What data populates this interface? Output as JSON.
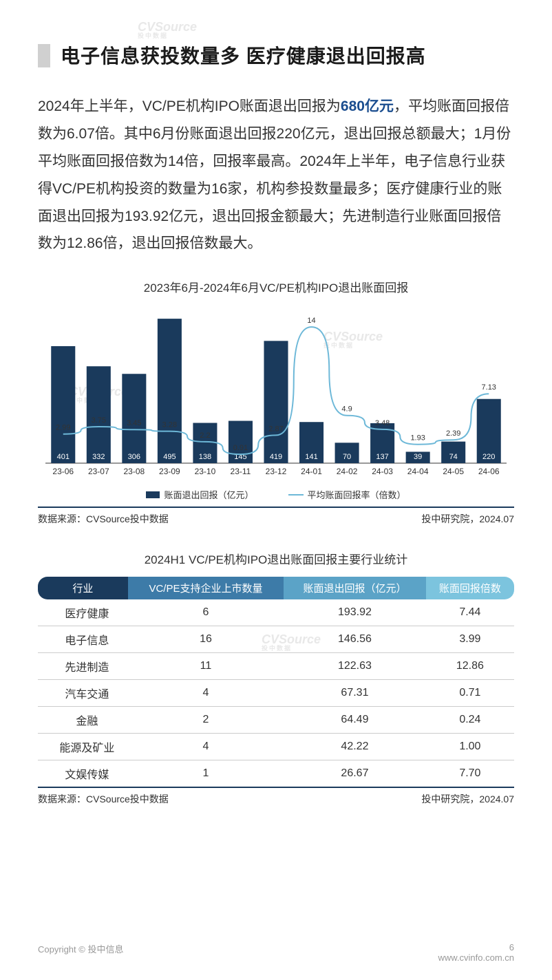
{
  "title": "电子信息获投数量多 医疗健康退出回报高",
  "body": {
    "p1a": "2024年上半年，VC/PE机构IPO账面退出回报为",
    "hl": "680亿元",
    "p1b": "，平均账面回报倍数为6.07倍。其中6月份账面退出回报220亿元，退出回报总额最大；1月份平均账面回报倍数为14倍，回报率最高。2024年上半年，电子信息行业获得VC/PE机构投资的数量为16家，机构参投数量最多；医疗健康行业的账面退出回报为193.92亿元，退出回报金额最大；先进制造行业账面回报倍数为12.86倍，退出回报倍数最大。"
  },
  "chart": {
    "title": "2023年6月-2024年6月VC/PE机构IPO退出账面回报",
    "type": "bar+line",
    "categories": [
      "23-06",
      "23-07",
      "23-08",
      "23-09",
      "23-10",
      "23-11",
      "23-12",
      "24-01",
      "24-02",
      "24-03",
      "24-04",
      "24-05",
      "24-06"
    ],
    "bar_values": [
      401,
      332,
      306,
      495,
      138,
      145,
      419,
      141,
      70,
      137,
      39,
      74,
      220
    ],
    "bar_max": 500,
    "bar_color": "#1a3a5c",
    "line_values": [
      2.99,
      3.75,
      3.45,
      3.28,
      2.2,
      0.91,
      2.87,
      14,
      4.9,
      3.48,
      1.93,
      2.39,
      7.13
    ],
    "line_max": 15,
    "line_color": "#6db8d8",
    "bar_label_color": "#ffffff",
    "line_label_color": "#333333",
    "axis_color": "#333333",
    "legend_bar": "账面退出回报（亿元）",
    "legend_line": "平均账面回报率（倍数）",
    "source_left": "数据来源：CVSource投中数据",
    "source_right": "投中研究院，2024.07",
    "label_fontsize": 11,
    "axis_fontsize": 12
  },
  "table": {
    "title": "2024H1 VC/PE机构IPO退出账面回报主要行业统计",
    "headers": [
      "行业",
      "VC/PE支持企业上市数量",
      "账面退出回报（亿元）",
      "账面回报倍数"
    ],
    "header_colors": [
      "#1a3a5c",
      "#3d7ba8",
      "#5ba3c7",
      "#7cc4de"
    ],
    "rows": [
      [
        "医疗健康",
        "6",
        "193.92",
        "7.44"
      ],
      [
        "电子信息",
        "16",
        "146.56",
        "3.99"
      ],
      [
        "先进制造",
        "11",
        "122.63",
        "12.86"
      ],
      [
        "汽车交通",
        "4",
        "67.31",
        "0.71"
      ],
      [
        "金融",
        "2",
        "64.49",
        "0.24"
      ],
      [
        "能源及矿业",
        "4",
        "42.22",
        "1.00"
      ],
      [
        "文娱传媒",
        "1",
        "26.67",
        "7.70"
      ]
    ],
    "source_left": "数据来源：CVSource投中数据",
    "source_right": "投中研究院，2024.07"
  },
  "footer": {
    "copyright": "Copyright © 投中信息",
    "page": "6",
    "url": "www.cvinfo.com.cn"
  },
  "watermark": {
    "main": "CVSource",
    "sub": "投中数据"
  }
}
